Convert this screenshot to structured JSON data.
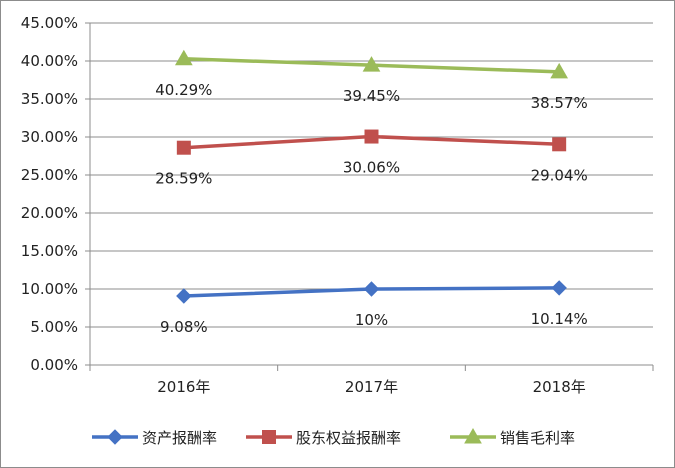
{
  "chart_data": {
    "type": "line",
    "categories": [
      "2016年",
      "2017年",
      "2018年"
    ],
    "series": [
      {
        "name": "资产报酬率",
        "values": [
          9.08,
          10,
          10.14
        ],
        "labels": [
          "9.08%",
          "10%",
          "10.14%"
        ],
        "color": "#4472C4",
        "marker": "diamond"
      },
      {
        "name": "股东权益报酬率",
        "values": [
          28.59,
          30.06,
          29.04
        ],
        "labels": [
          "28.59%",
          "30.06%",
          "29.04%"
        ],
        "color": "#C0504D",
        "marker": "square"
      },
      {
        "name": "销售毛利率",
        "values": [
          40.29,
          39.45,
          38.57
        ],
        "labels": [
          "40.29%",
          "39.45%",
          "38.57%"
        ],
        "color": "#9BBB59",
        "marker": "triangle"
      }
    ],
    "ylim": [
      0,
      45
    ],
    "yticks": [
      0,
      5,
      10,
      15,
      20,
      25,
      30,
      35,
      40,
      45
    ],
    "ytick_labels": [
      "0.00%",
      "5.00%",
      "10.00%",
      "15.00%",
      "20.00%",
      "25.00%",
      "30.00%",
      "35.00%",
      "40.00%",
      "45.00%"
    ],
    "grid": true,
    "legend_position": "bottom"
  }
}
